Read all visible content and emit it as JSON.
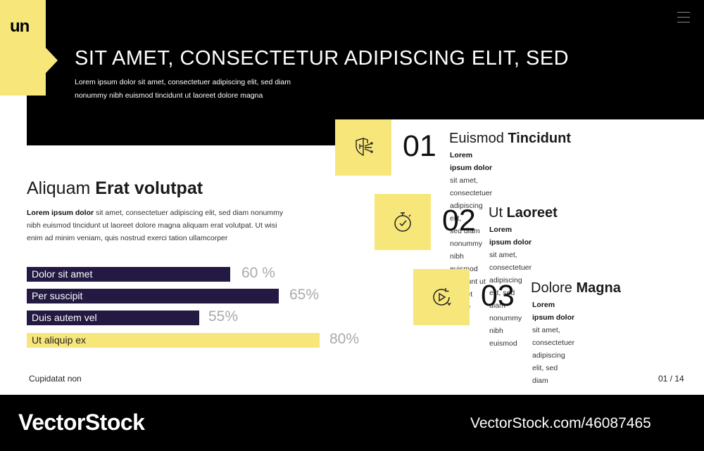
{
  "brand": {
    "logo": "un",
    "accent": "#f7e77a",
    "bar_color": "#231942"
  },
  "header": {
    "title": "SIT AMET, CONSECTETUR  ADIPISCING ELIT, SED",
    "subtitle": "Lorem ipsum dolor sit amet, consectetuer adipiscing elit, sed diam nonummy nibh euismod tincidunt ut laoreet dolore magna"
  },
  "section": {
    "title_light": "Aliquam ",
    "title_bold": "Erat volutpat",
    "body_bold": "Lorem ipsum dolor",
    "body": "  sit amet, consectetuer adipiscing elit, sed diam nonummy nibh euismod tincidunt ut laoreet dolore magna aliquam erat volutpat. Ut wisi enim ad minim veniam, quis nostrud exerci tation ullamcorper"
  },
  "bars": [
    {
      "label": "Dolor sit amet",
      "pct": "60 %",
      "value": 60
    },
    {
      "label": "Per suscipit",
      "pct": "65%",
      "value": 65
    },
    {
      "label": "Duis autem vel",
      "pct": "55%",
      "value": 55
    },
    {
      "label": "Ut aliquip ex",
      "pct": "80%",
      "value": 80
    }
  ],
  "features": [
    {
      "num": "01",
      "title_light": "Euismod ",
      "title_bold": "Tincidunt",
      "body_bold": "Lorem ipsum dolor",
      "body_1": "  sit amet, consectetuer adipiscing elit,",
      "body_2": "sed diam nonummy nibh euismod tincidunt ut laoreet dolore",
      "icon": "shield-icon"
    },
    {
      "num": "02",
      "title_light": "Ut ",
      "title_bold": "Laoreet",
      "body_bold": "Lorem ipsum dolor",
      "body_1": "  sit amet, consectetuer",
      "body_2": "adipiscing elit, sed diam nonummy nibh euismod",
      "icon": "stopwatch-icon"
    },
    {
      "num": "03",
      "title_light": "Dolore ",
      "title_bold": "Magna",
      "body_bold": "Lorem ipsum dolor",
      "body_1": "  sit amet,",
      "body_2": "consectetuer adipiscing elit, sed diam",
      "icon": "refresh-play-icon"
    }
  ],
  "footer": {
    "left": "Cupidatat non",
    "page": "01  /  14"
  },
  "watermark": {
    "left": "VectorStock",
    "right": "VectorStock.com/46087465"
  }
}
